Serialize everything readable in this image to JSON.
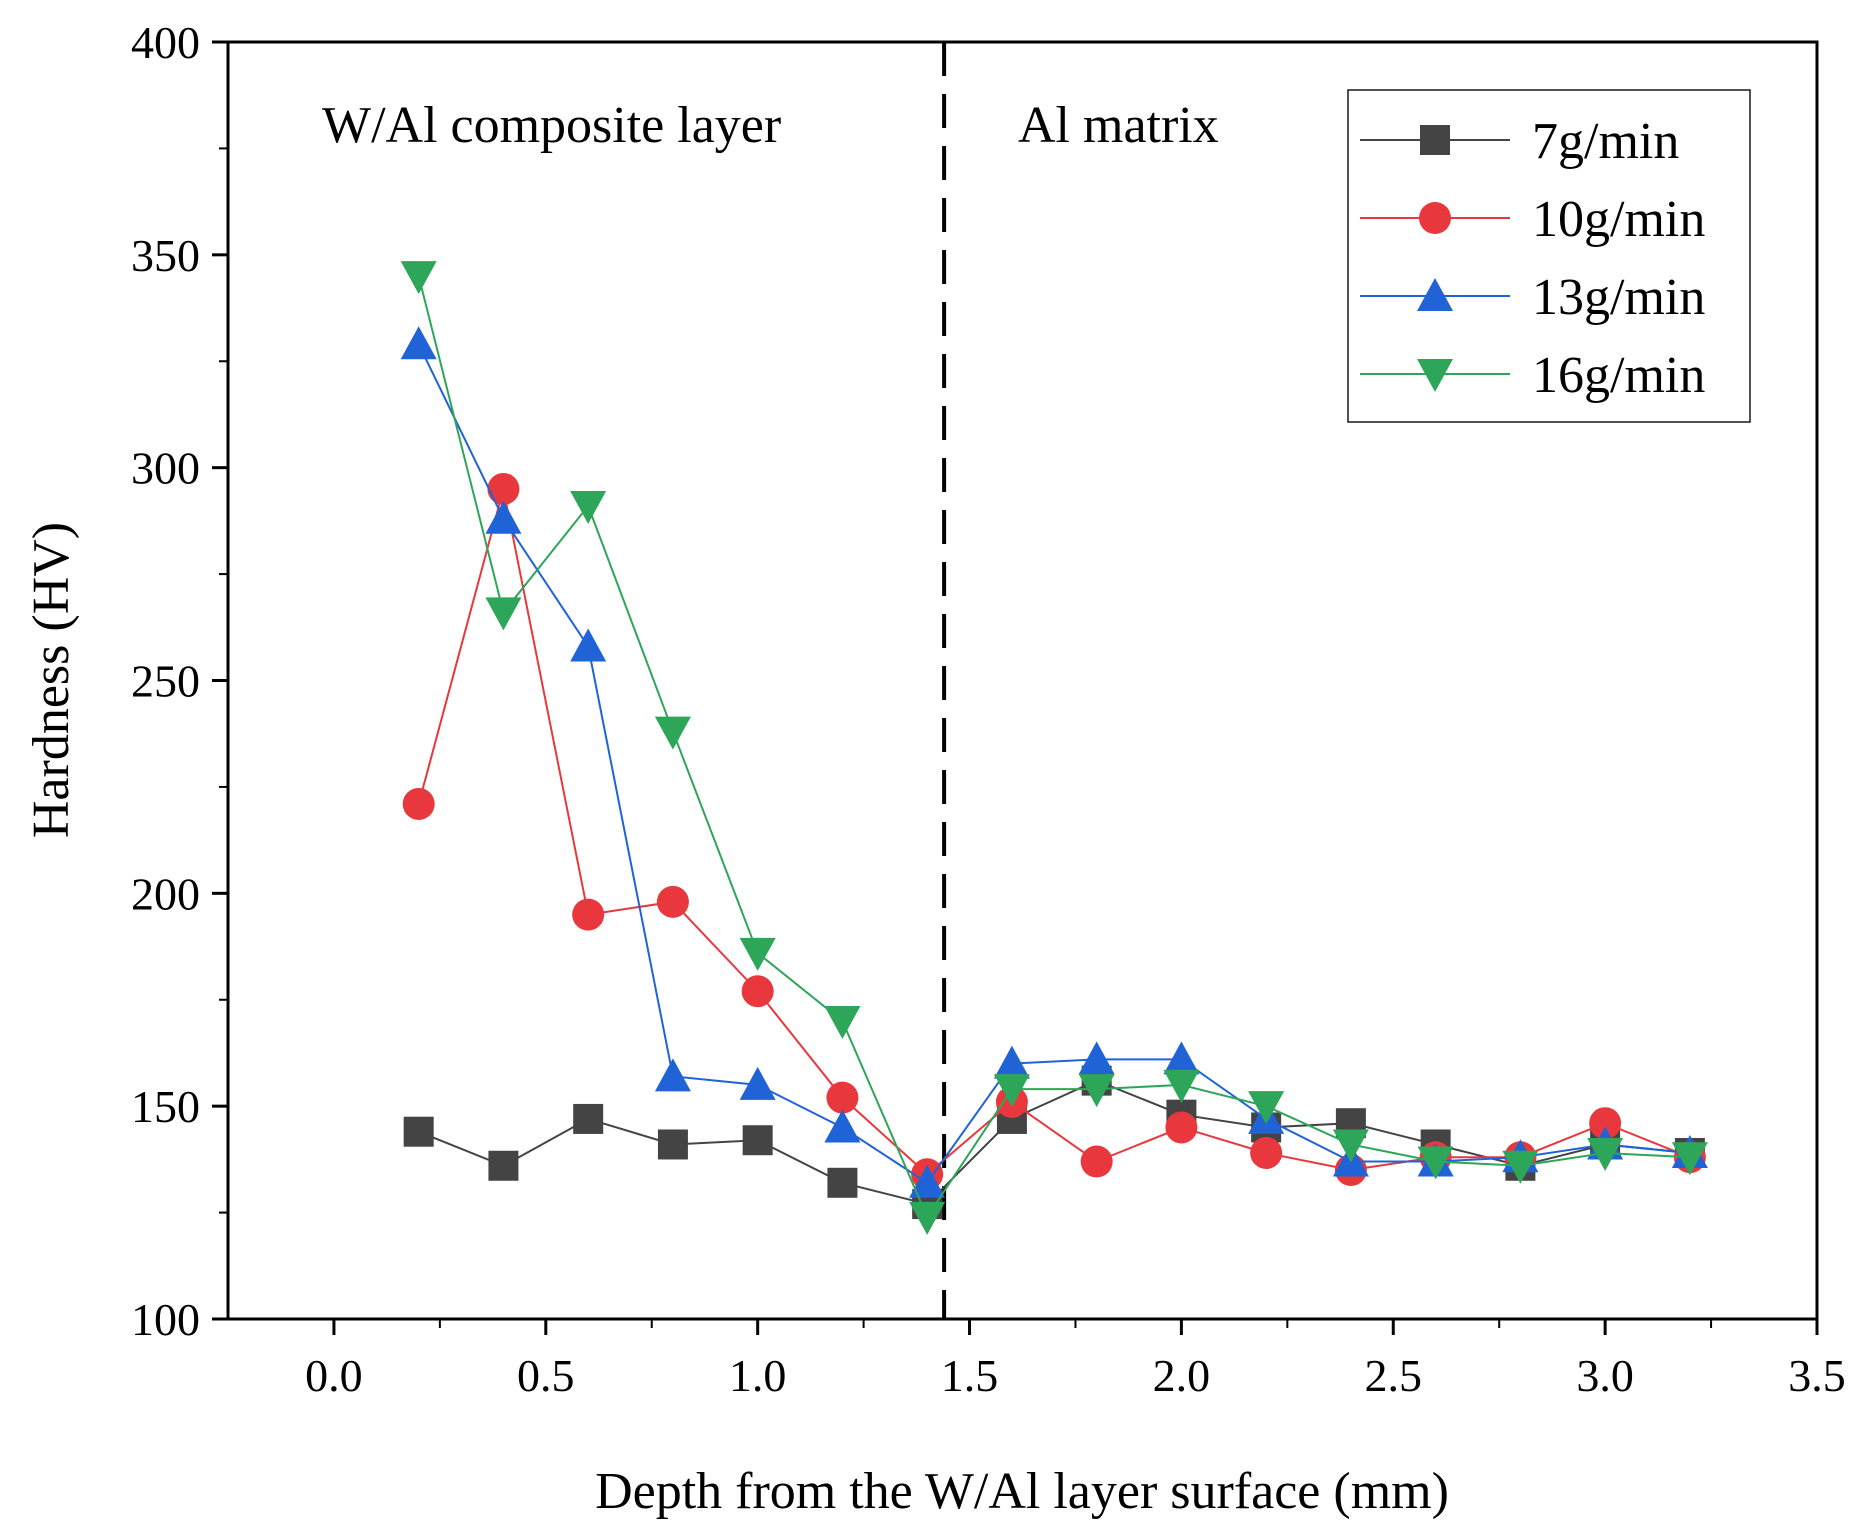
{
  "chart_data": {
    "type": "line",
    "title": "",
    "xlabel": "Depth from the W/Al layer surface (mm)",
    "ylabel": "Hardness (HV)",
    "xlim": [
      -0.25,
      3.5
    ],
    "ylim": [
      100,
      400
    ],
    "xticks": [
      0.0,
      0.5,
      1.0,
      1.5,
      2.0,
      2.5,
      3.0,
      3.5
    ],
    "xtick_labels": [
      "0.0",
      "0.5",
      "1.0",
      "1.5",
      "2.0",
      "2.5",
      "3.0",
      "3.5"
    ],
    "yticks": [
      100,
      150,
      200,
      250,
      300,
      350,
      400
    ],
    "ytick_labels": [
      "100",
      "150",
      "200",
      "250",
      "300",
      "350",
      "400"
    ],
    "grid": false,
    "legend_position": "top-right",
    "annotations": [
      {
        "text": "W/Al composite layer",
        "region": "left"
      },
      {
        "text": "Al matrix",
        "region": "right"
      }
    ],
    "boundary_x": 1.44,
    "x": [
      0.2,
      0.4,
      0.6,
      0.8,
      1.0,
      1.2,
      1.4,
      1.6,
      1.8,
      2.0,
      2.2,
      2.4,
      2.6,
      2.8,
      3.0,
      3.2
    ],
    "series": [
      {
        "name": "7g/min",
        "color": "#444444",
        "marker": "square",
        "values": [
          144,
          136,
          147,
          141,
          142,
          132,
          127,
          147,
          156,
          148,
          145,
          146,
          141,
          136,
          141,
          139
        ]
      },
      {
        "name": "10g/min",
        "color": "#e8383d",
        "marker": "circle",
        "values": [
          221,
          295,
          195,
          198,
          177,
          152,
          134,
          151,
          137,
          145,
          139,
          135,
          138,
          138,
          146,
          138
        ]
      },
      {
        "name": "13g/min",
        "color": "#1f63d6",
        "marker": "triangle-up",
        "values": [
          329,
          288,
          258,
          157,
          155,
          145,
          132,
          160,
          161,
          161,
          147,
          137,
          137,
          138,
          141,
          139
        ]
      },
      {
        "name": "16g/min",
        "color": "#2ea65a",
        "marker": "triangle-down",
        "values": [
          345,
          266,
          291,
          238,
          186,
          170,
          124,
          154,
          154,
          155,
          150,
          141,
          137,
          136,
          139,
          138
        ]
      }
    ]
  }
}
